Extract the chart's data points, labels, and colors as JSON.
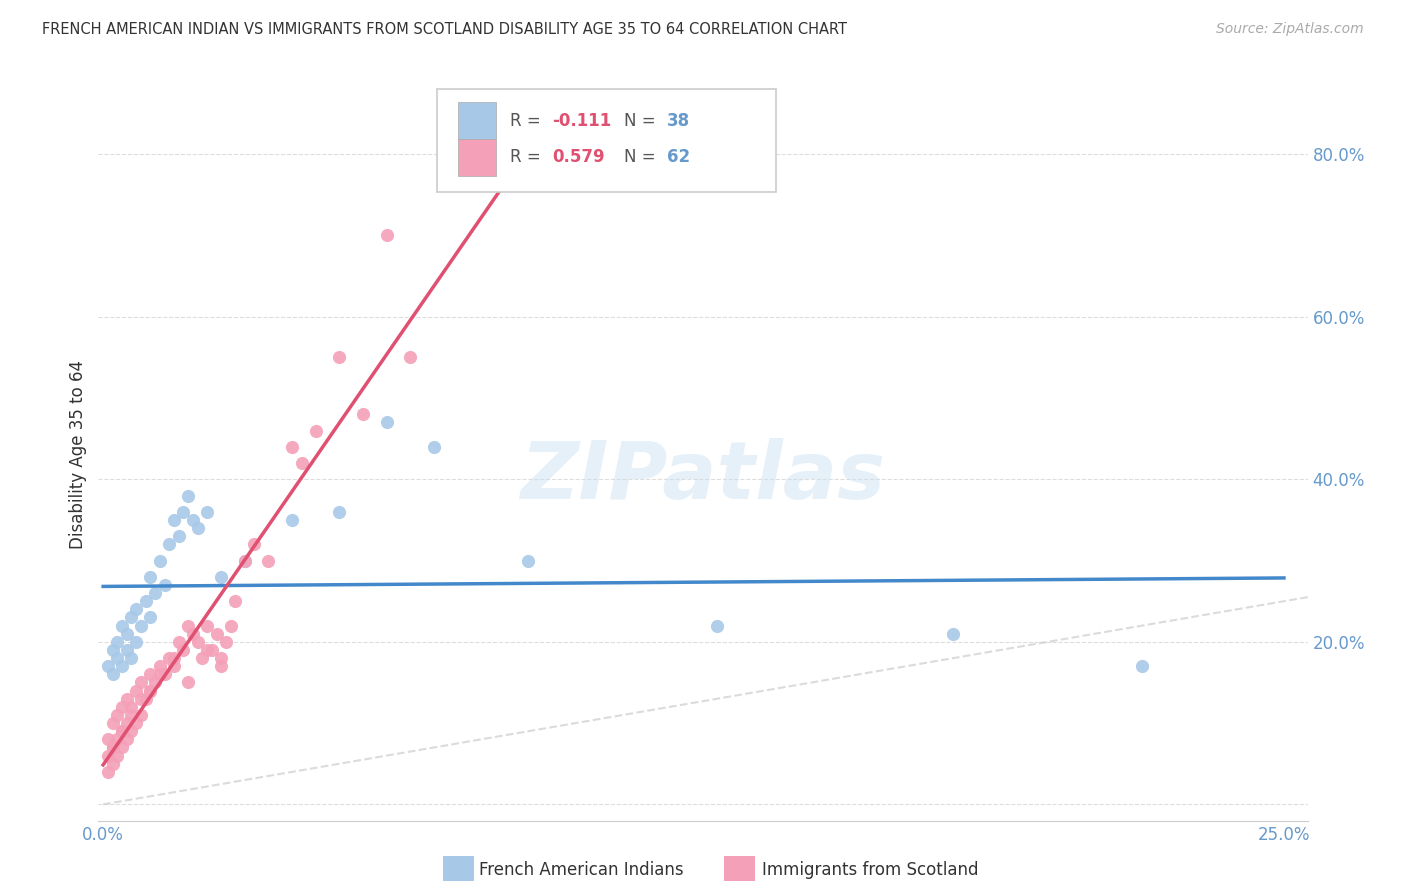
{
  "title": "FRENCH AMERICAN INDIAN VS IMMIGRANTS FROM SCOTLAND DISABILITY AGE 35 TO 64 CORRELATION CHART",
  "source": "Source: ZipAtlas.com",
  "ylabel": "Disability Age 35 to 64",
  "xlim": [
    -0.001,
    0.255
  ],
  "ylim": [
    -0.02,
    0.88
  ],
  "xticks": [
    0.0,
    0.05,
    0.1,
    0.15,
    0.2,
    0.25
  ],
  "yticks": [
    0.0,
    0.2,
    0.4,
    0.6,
    0.8
  ],
  "xticklabels": [
    "0.0%",
    "",
    "",
    "",
    "",
    "25.0%"
  ],
  "yticklabels": [
    "",
    "20.0%",
    "40.0%",
    "60.0%",
    "80.0%"
  ],
  "legend1_R": "-0.111",
  "legend1_N": "38",
  "legend2_R": "0.579",
  "legend2_N": "62",
  "color_blue": "#a8c8e8",
  "color_pink": "#f4a0b8",
  "color_blue_line": "#4488cc",
  "color_pink_line": "#e05070",
  "color_diag": "#cccccc",
  "color_title": "#333333",
  "color_source": "#aaaaaa",
  "color_axis_label": "#6699cc",
  "color_grid": "#dddddd",
  "bg_color": "#ffffff",
  "watermark": "ZIPatlas",
  "blue_x": [
    0.001,
    0.002,
    0.002,
    0.003,
    0.003,
    0.004,
    0.004,
    0.005,
    0.005,
    0.006,
    0.006,
    0.007,
    0.007,
    0.008,
    0.009,
    0.01,
    0.01,
    0.011,
    0.012,
    0.013,
    0.014,
    0.015,
    0.016,
    0.017,
    0.018,
    0.019,
    0.02,
    0.022,
    0.025,
    0.03,
    0.04,
    0.05,
    0.06,
    0.07,
    0.09,
    0.13,
    0.18,
    0.22
  ],
  "blue_y": [
    0.17,
    0.19,
    0.16,
    0.18,
    0.2,
    0.17,
    0.22,
    0.19,
    0.21,
    0.18,
    0.23,
    0.2,
    0.24,
    0.22,
    0.25,
    0.28,
    0.23,
    0.26,
    0.3,
    0.27,
    0.32,
    0.35,
    0.33,
    0.36,
    0.38,
    0.35,
    0.34,
    0.36,
    0.28,
    0.3,
    0.35,
    0.36,
    0.47,
    0.44,
    0.3,
    0.22,
    0.21,
    0.17
  ],
  "pink_x": [
    0.001,
    0.001,
    0.001,
    0.002,
    0.002,
    0.002,
    0.003,
    0.003,
    0.003,
    0.004,
    0.004,
    0.004,
    0.005,
    0.005,
    0.005,
    0.006,
    0.006,
    0.007,
    0.007,
    0.008,
    0.008,
    0.009,
    0.01,
    0.01,
    0.011,
    0.012,
    0.013,
    0.014,
    0.015,
    0.016,
    0.017,
    0.018,
    0.019,
    0.02,
    0.021,
    0.022,
    0.023,
    0.024,
    0.025,
    0.026,
    0.027,
    0.028,
    0.03,
    0.032,
    0.035,
    0.04,
    0.042,
    0.045,
    0.05,
    0.055,
    0.06,
    0.065,
    0.025,
    0.022,
    0.018,
    0.015,
    0.012,
    0.01,
    0.008,
    0.006,
    0.004,
    0.002
  ],
  "pink_y": [
    0.04,
    0.06,
    0.08,
    0.05,
    0.07,
    0.1,
    0.06,
    0.08,
    0.11,
    0.07,
    0.09,
    0.12,
    0.08,
    0.1,
    0.13,
    0.09,
    0.12,
    0.1,
    0.14,
    0.11,
    0.15,
    0.13,
    0.14,
    0.16,
    0.15,
    0.17,
    0.16,
    0.18,
    0.17,
    0.2,
    0.19,
    0.22,
    0.21,
    0.2,
    0.18,
    0.22,
    0.19,
    0.21,
    0.18,
    0.2,
    0.22,
    0.25,
    0.3,
    0.32,
    0.3,
    0.44,
    0.42,
    0.46,
    0.55,
    0.48,
    0.7,
    0.55,
    0.17,
    0.19,
    0.15,
    0.18,
    0.16,
    0.14,
    0.13,
    0.11,
    0.09,
    0.07
  ],
  "legend_bottom_blue": "French American Indians",
  "legend_bottom_pink": "Immigrants from Scotland"
}
